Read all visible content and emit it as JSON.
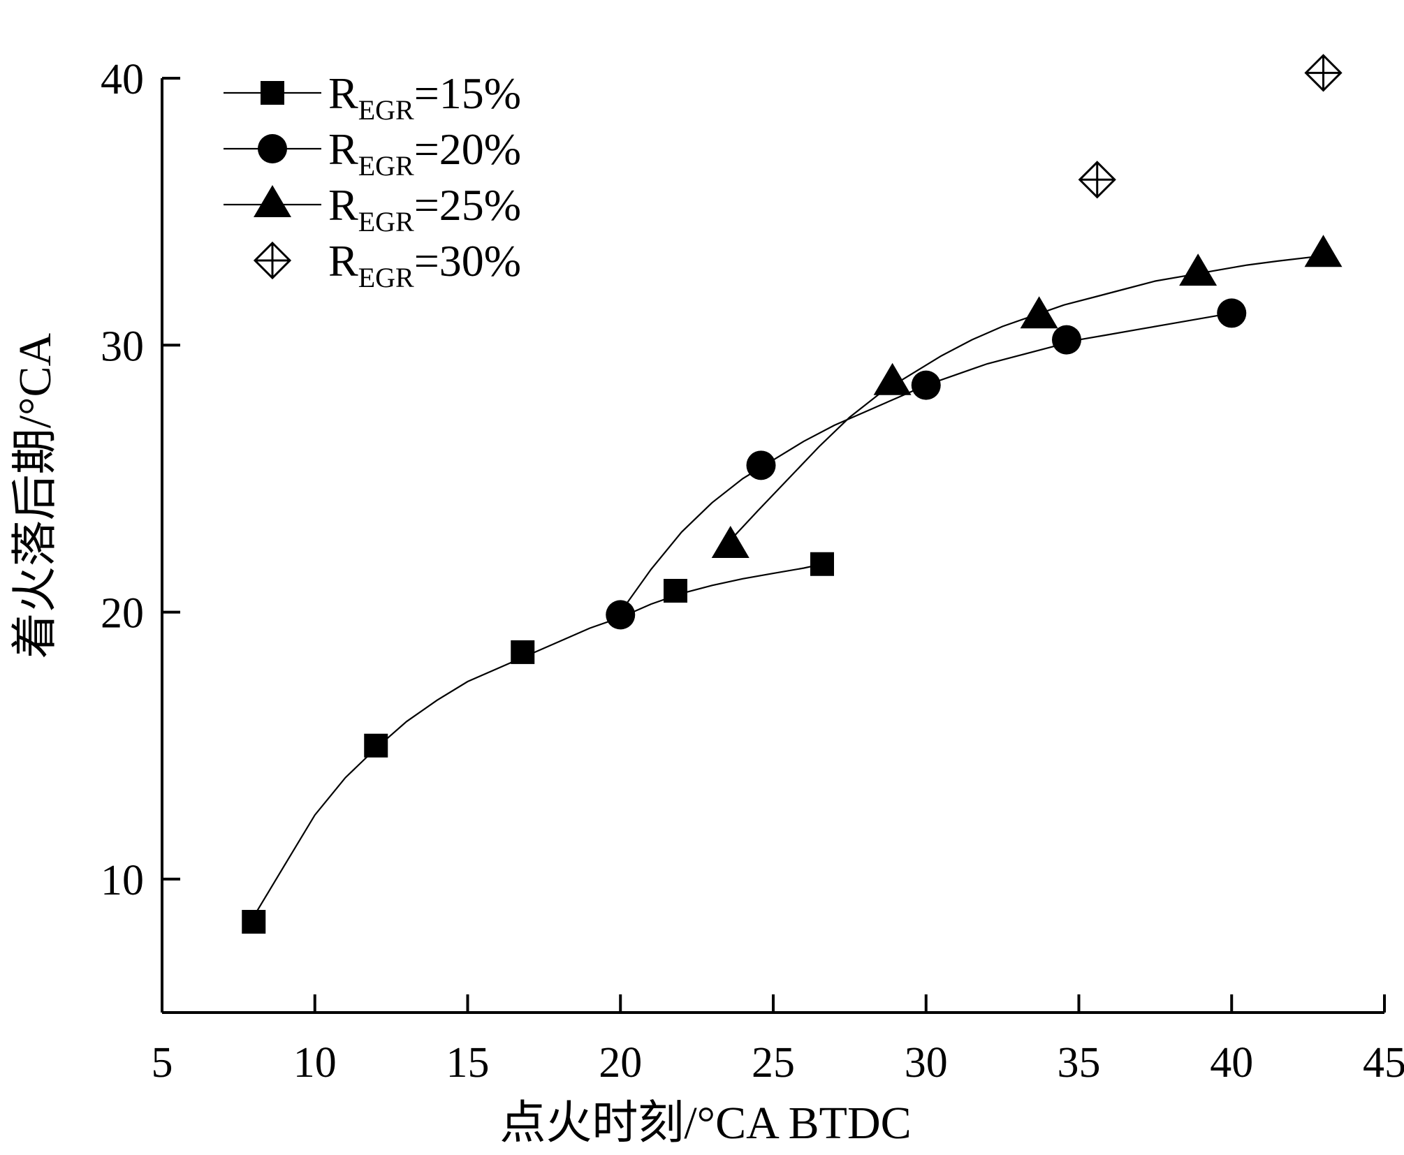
{
  "chart_data": {
    "type": "scatter",
    "title": "",
    "xlabel": "点火时刻/°CA BTDC",
    "ylabel": "着火落后期/°CA",
    "xlim": [
      5,
      45
    ],
    "ylim": [
      5,
      40
    ],
    "xticks": [
      5,
      10,
      15,
      20,
      25,
      30,
      35,
      40,
      45
    ],
    "yticks": [
      10,
      20,
      30,
      40
    ],
    "grid": false,
    "legend_position": "top-left",
    "series": [
      {
        "name": "R",
        "name_sub": "EGR",
        "name_suffix": "=15%",
        "marker": "square",
        "x": [
          8,
          12,
          16.8,
          21.8,
          26.6
        ],
        "y": [
          8.4,
          15.0,
          18.5,
          20.8,
          21.8
        ],
        "curve_x": [
          8,
          9,
          10,
          11,
          12,
          13,
          14,
          15,
          16,
          17,
          18,
          19,
          20,
          21,
          22,
          23,
          24,
          25,
          26,
          26.6
        ],
        "curve_y": [
          8.6,
          10.5,
          12.4,
          13.8,
          14.9,
          15.9,
          16.7,
          17.4,
          17.9,
          18.4,
          18.9,
          19.4,
          19.8,
          20.3,
          20.7,
          21.0,
          21.25,
          21.45,
          21.65,
          21.8
        ]
      },
      {
        "name": "R",
        "name_sub": "EGR",
        "name_suffix": "=20%",
        "marker": "circle",
        "x": [
          20,
          24.6,
          30,
          34.6,
          40
        ],
        "y": [
          19.9,
          25.5,
          28.5,
          30.2,
          31.2
        ],
        "curve_x": [
          20,
          21,
          22,
          23,
          24,
          25,
          26,
          27,
          28,
          29,
          30,
          31,
          32,
          33,
          34,
          35,
          36,
          37,
          38,
          39,
          40
        ],
        "curve_y": [
          20.0,
          21.6,
          23.0,
          24.1,
          25.0,
          25.7,
          26.4,
          27.0,
          27.5,
          28.0,
          28.5,
          28.9,
          29.3,
          29.6,
          29.9,
          30.2,
          30.4,
          30.6,
          30.8,
          31.0,
          31.2
        ]
      },
      {
        "name": "R",
        "name_sub": "EGR",
        "name_suffix": "=25%",
        "marker": "triangle",
        "x": [
          23.6,
          28.9,
          33.7,
          38.9,
          43
        ],
        "y": [
          22.5,
          28.6,
          31.1,
          32.7,
          33.4
        ],
        "curve_x": [
          23.6,
          24.5,
          25.5,
          26.5,
          27.5,
          28.5,
          29.5,
          30.5,
          31.5,
          32.5,
          33.5,
          34.5,
          35.5,
          36.5,
          37.5,
          38.5,
          39.5,
          40.5,
          41.5,
          43
        ],
        "curve_y": [
          22.7,
          23.8,
          25.0,
          26.2,
          27.3,
          28.2,
          28.9,
          29.6,
          30.2,
          30.7,
          31.1,
          31.5,
          31.8,
          32.1,
          32.4,
          32.6,
          32.8,
          33.0,
          33.15,
          33.35
        ]
      },
      {
        "name": "R",
        "name_sub": "EGR",
        "name_suffix": "=30%",
        "marker": "diamond-cross",
        "x": [
          35.6,
          43
        ],
        "y": [
          36.2,
          40.2
        ]
      }
    ]
  }
}
